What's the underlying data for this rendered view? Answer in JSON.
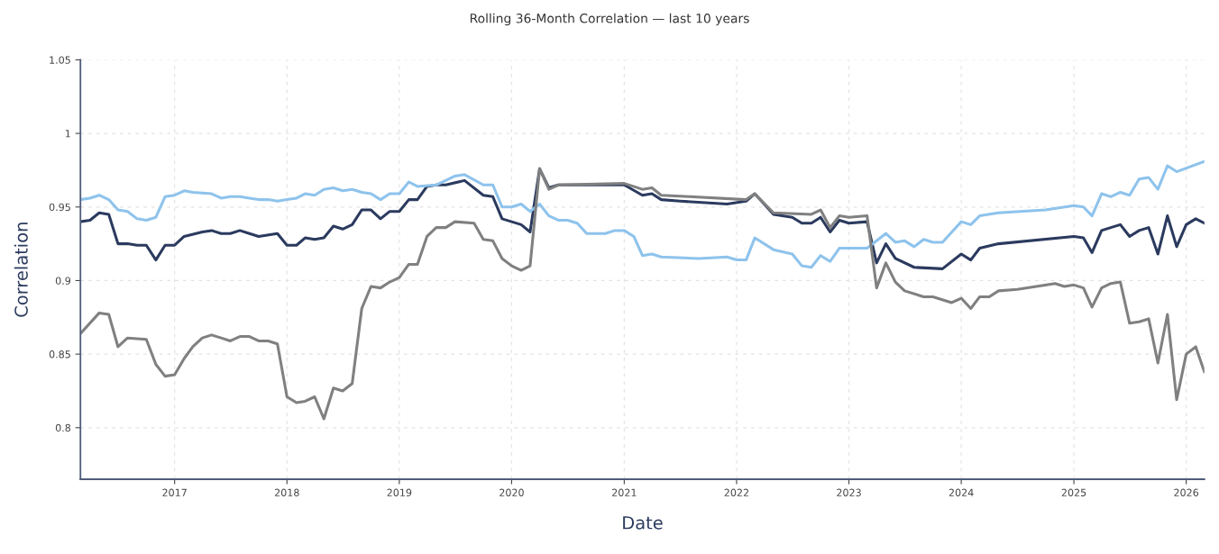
{
  "chart_data": {
    "type": "line",
    "title": "Rolling 36-Month Correlation — last 10 years",
    "xlabel": "Date",
    "ylabel": "Correlation",
    "xlim": [
      "2016-03",
      "2026-03"
    ],
    "xticks": [
      "2017",
      "2018",
      "2019",
      "2020",
      "2021",
      "2022",
      "2023",
      "2024",
      "2025",
      "2026"
    ],
    "ylim": [
      0.765,
      1.05
    ],
    "yticks": [
      0.8,
      0.85,
      0.9,
      0.95,
      1,
      1.05
    ],
    "grid": true,
    "marker": "none",
    "line_style": "solid",
    "series": [
      {
        "color": "#2b3a5e",
        "x": [
          "2016-03",
          "2016-04",
          "2016-05",
          "2016-06",
          "2016-07",
          "2016-08",
          "2016-09",
          "2016-10",
          "2016-11",
          "2016-12",
          "2017-01",
          "2017-02",
          "2017-04",
          "2017-05",
          "2017-06",
          "2017-07",
          "2017-08",
          "2017-09",
          "2017-10",
          "2017-12",
          "2018-01",
          "2018-02",
          "2018-03",
          "2018-04",
          "2018-05",
          "2018-06",
          "2018-07",
          "2018-08",
          "2018-09",
          "2018-10",
          "2018-11",
          "2018-12",
          "2019-01",
          "2019-02",
          "2019-03",
          "2019-04",
          "2019-05",
          "2019-06",
          "2019-08",
          "2019-10",
          "2019-11",
          "2019-12",
          "2020-02",
          "2020-03",
          "2020-04",
          "2020-05",
          "2020-06",
          "2021-01",
          "2021-03",
          "2021-04",
          "2021-05",
          "2021-07",
          "2021-12",
          "2022-02",
          "2022-03",
          "2022-05",
          "2022-07",
          "2022-08",
          "2022-09",
          "2022-10",
          "2022-11",
          "2022-12",
          "2023-01",
          "2023-03",
          "2023-04",
          "2023-05",
          "2023-06",
          "2023-08",
          "2023-11",
          "2024-01",
          "2024-02",
          "2024-03",
          "2024-05",
          "2025-01",
          "2025-02",
          "2025-03",
          "2025-04",
          "2025-05",
          "2025-06",
          "2025-07",
          "2025-08",
          "2025-09",
          "2025-10",
          "2025-11",
          "2025-12",
          "2026-01",
          "2026-02",
          "2026-03"
        ],
        "values": [
          0.94,
          0.941,
          0.946,
          0.945,
          0.925,
          0.925,
          0.924,
          0.924,
          0.914,
          0.924,
          0.924,
          0.93,
          0.933,
          0.934,
          0.932,
          0.932,
          0.934,
          0.932,
          0.93,
          0.932,
          0.924,
          0.924,
          0.929,
          0.928,
          0.929,
          0.937,
          0.935,
          0.938,
          0.948,
          0.948,
          0.942,
          0.947,
          0.947,
          0.955,
          0.955,
          0.964,
          0.965,
          0.965,
          0.968,
          0.958,
          0.957,
          0.942,
          0.938,
          0.933,
          0.976,
          0.963,
          0.965,
          0.965,
          0.958,
          0.959,
          0.955,
          0.954,
          0.952,
          0.954,
          0.959,
          0.945,
          0.943,
          0.939,
          0.939,
          0.943,
          0.933,
          0.941,
          0.939,
          0.94,
          0.912,
          0.925,
          0.915,
          0.909,
          0.908,
          0.918,
          0.914,
          0.922,
          0.925,
          0.93,
          0.929,
          0.919,
          0.934,
          0.936,
          0.938,
          0.93,
          0.934,
          0.936,
          0.918,
          0.944,
          0.923,
          0.938,
          0.942,
          0.939
        ]
      },
      {
        "color": "#8ec3ec",
        "x": [
          "2016-03",
          "2016-04",
          "2016-05",
          "2016-06",
          "2016-07",
          "2016-08",
          "2016-09",
          "2016-10",
          "2016-11",
          "2016-12",
          "2017-01",
          "2017-02",
          "2017-03",
          "2017-05",
          "2017-06",
          "2017-07",
          "2017-08",
          "2017-09",
          "2017-10",
          "2017-11",
          "2017-12",
          "2018-01",
          "2018-02",
          "2018-03",
          "2018-04",
          "2018-05",
          "2018-06",
          "2018-07",
          "2018-08",
          "2018-09",
          "2018-10",
          "2018-11",
          "2018-12",
          "2019-01",
          "2019-02",
          "2019-03",
          "2019-05",
          "2019-07",
          "2019-08",
          "2019-10",
          "2019-11",
          "2019-12",
          "2020-01",
          "2020-02",
          "2020-03",
          "2020-04",
          "2020-05",
          "2020-06",
          "2020-07",
          "2020-08",
          "2020-09",
          "2020-11",
          "2020-12",
          "2021-01",
          "2021-02",
          "2021-03",
          "2021-04",
          "2021-05",
          "2021-09",
          "2021-12",
          "2022-01",
          "2022-02",
          "2022-03",
          "2022-05",
          "2022-07",
          "2022-08",
          "2022-09",
          "2022-10",
          "2022-11",
          "2022-12",
          "2023-01",
          "2023-03",
          "2023-05",
          "2023-06",
          "2023-07",
          "2023-08",
          "2023-09",
          "2023-10",
          "2023-11",
          "2024-01",
          "2024-02",
          "2024-03",
          "2024-05",
          "2024-10",
          "2025-01",
          "2025-02",
          "2025-03",
          "2025-04",
          "2025-05",
          "2025-06",
          "2025-07",
          "2025-08",
          "2025-09",
          "2025-10",
          "2025-11",
          "2025-12",
          "2026-03"
        ],
        "values": [
          0.955,
          0.956,
          0.958,
          0.955,
          0.948,
          0.947,
          0.942,
          0.941,
          0.943,
          0.957,
          0.958,
          0.961,
          0.96,
          0.959,
          0.956,
          0.957,
          0.957,
          0.956,
          0.955,
          0.955,
          0.954,
          0.955,
          0.956,
          0.959,
          0.958,
          0.962,
          0.963,
          0.961,
          0.962,
          0.96,
          0.959,
          0.955,
          0.959,
          0.959,
          0.967,
          0.964,
          0.965,
          0.971,
          0.972,
          0.965,
          0.965,
          0.95,
          0.95,
          0.952,
          0.947,
          0.952,
          0.944,
          0.941,
          0.941,
          0.939,
          0.932,
          0.932,
          0.934,
          0.934,
          0.93,
          0.917,
          0.918,
          0.916,
          0.915,
          0.916,
          0.914,
          0.914,
          0.929,
          0.921,
          0.918,
          0.91,
          0.909,
          0.917,
          0.913,
          0.922,
          0.922,
          0.922,
          0.932,
          0.926,
          0.927,
          0.923,
          0.928,
          0.926,
          0.926,
          0.94,
          0.938,
          0.944,
          0.946,
          0.948,
          0.951,
          0.95,
          0.944,
          0.959,
          0.957,
          0.96,
          0.958,
          0.969,
          0.97,
          0.962,
          0.978,
          0.974,
          0.981
        ]
      },
      {
        "color": "#808080",
        "x": [
          "2016-03",
          "2016-05",
          "2016-06",
          "2016-07",
          "2016-08",
          "2016-10",
          "2016-11",
          "2016-12",
          "2017-01",
          "2017-02",
          "2017-03",
          "2017-04",
          "2017-05",
          "2017-06",
          "2017-07",
          "2017-08",
          "2017-09",
          "2017-10",
          "2017-11",
          "2017-12",
          "2018-01",
          "2018-02",
          "2018-03",
          "2018-04",
          "2018-05",
          "2018-06",
          "2018-07",
          "2018-08",
          "2018-09",
          "2018-10",
          "2018-11",
          "2018-12",
          "2019-01",
          "2019-02",
          "2019-03",
          "2019-04",
          "2019-05",
          "2019-06",
          "2019-07",
          "2019-09",
          "2019-10",
          "2019-11",
          "2019-12",
          "2020-01",
          "2020-02",
          "2020-03",
          "2020-04",
          "2020-05",
          "2020-06",
          "2021-01",
          "2021-03",
          "2021-04",
          "2021-05",
          "2021-08",
          "2022-02",
          "2022-03",
          "2022-05",
          "2022-09",
          "2022-10",
          "2022-11",
          "2022-12",
          "2023-01",
          "2023-03",
          "2023-04",
          "2023-05",
          "2023-06",
          "2023-07",
          "2023-09",
          "2023-10",
          "2023-12",
          "2024-01",
          "2024-02",
          "2024-03",
          "2024-04",
          "2024-05",
          "2024-07",
          "2024-09",
          "2024-11",
          "2024-12",
          "2025-01",
          "2025-02",
          "2025-03",
          "2025-04",
          "2025-05",
          "2025-06",
          "2025-07",
          "2025-08",
          "2025-09",
          "2025-10",
          "2025-11",
          "2025-12",
          "2026-01",
          "2026-02",
          "2026-03"
        ],
        "values": [
          0.864,
          0.878,
          0.877,
          0.855,
          0.861,
          0.86,
          0.843,
          0.835,
          0.836,
          0.847,
          0.855,
          0.861,
          0.863,
          0.861,
          0.859,
          0.862,
          0.862,
          0.859,
          0.859,
          0.857,
          0.821,
          0.817,
          0.818,
          0.821,
          0.806,
          0.827,
          0.825,
          0.83,
          0.881,
          0.896,
          0.895,
          0.899,
          0.902,
          0.911,
          0.911,
          0.93,
          0.936,
          0.936,
          0.94,
          0.939,
          0.928,
          0.927,
          0.915,
          0.91,
          0.907,
          0.91,
          0.976,
          0.962,
          0.965,
          0.966,
          0.962,
          0.963,
          0.958,
          0.957,
          0.955,
          0.959,
          0.946,
          0.945,
          0.948,
          0.936,
          0.944,
          0.943,
          0.944,
          0.895,
          0.912,
          0.899,
          0.893,
          0.889,
          0.889,
          0.885,
          0.888,
          0.881,
          0.889,
          0.889,
          0.893,
          0.894,
          0.896,
          0.898,
          0.896,
          0.897,
          0.895,
          0.882,
          0.895,
          0.898,
          0.899,
          0.871,
          0.872,
          0.874,
          0.844,
          0.877,
          0.819,
          0.85,
          0.855,
          0.838
        ]
      }
    ]
  }
}
